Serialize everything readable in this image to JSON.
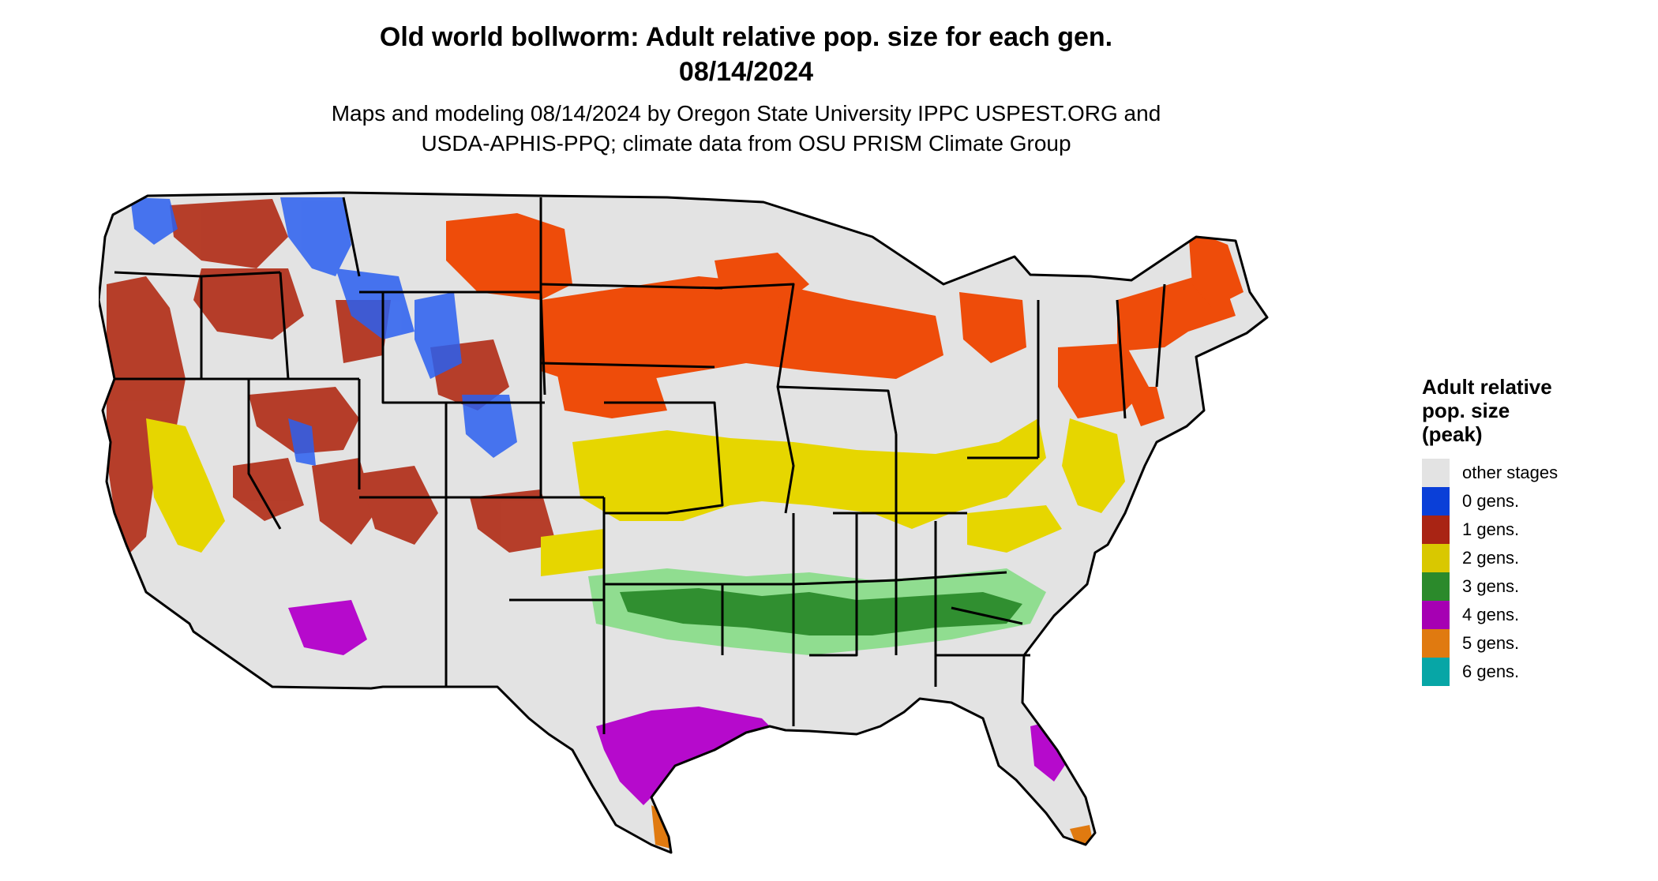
{
  "title": {
    "line1": "Old world bollworm: Adult relative pop. size for each gen.",
    "line2": "08/14/2024"
  },
  "subtitle": {
    "line1": "Maps and modeling 08/14/2024 by Oregon State University IPPC USPEST.ORG and",
    "line2": "USDA-APHIS-PPQ; climate data from OSU PRISM Climate Group"
  },
  "legend": {
    "title_lines": [
      "Adult relative",
      "pop. size",
      "(peak)"
    ],
    "items": [
      {
        "label": "other stages",
        "color": "#e3e3e3"
      },
      {
        "label": "0 gens.",
        "color": "#0a3fd8"
      },
      {
        "label": "1 gens.",
        "color": "#a92414"
      },
      {
        "label": "2 gens.",
        "color": "#d9c800"
      },
      {
        "label": "3 gens.",
        "color": "#2b8a2b"
      },
      {
        "label": "4 gens.",
        "color": "#a600b3"
      },
      {
        "label": "5 gens.",
        "color": "#e07a10"
      },
      {
        "label": "6 gens.",
        "color": "#07a6a6"
      }
    ]
  },
  "map": {
    "background_color": "#e3e3e3",
    "border_color": "#000000",
    "bright_red": "#ee4c0a",
    "light_green": "#86dc86"
  }
}
